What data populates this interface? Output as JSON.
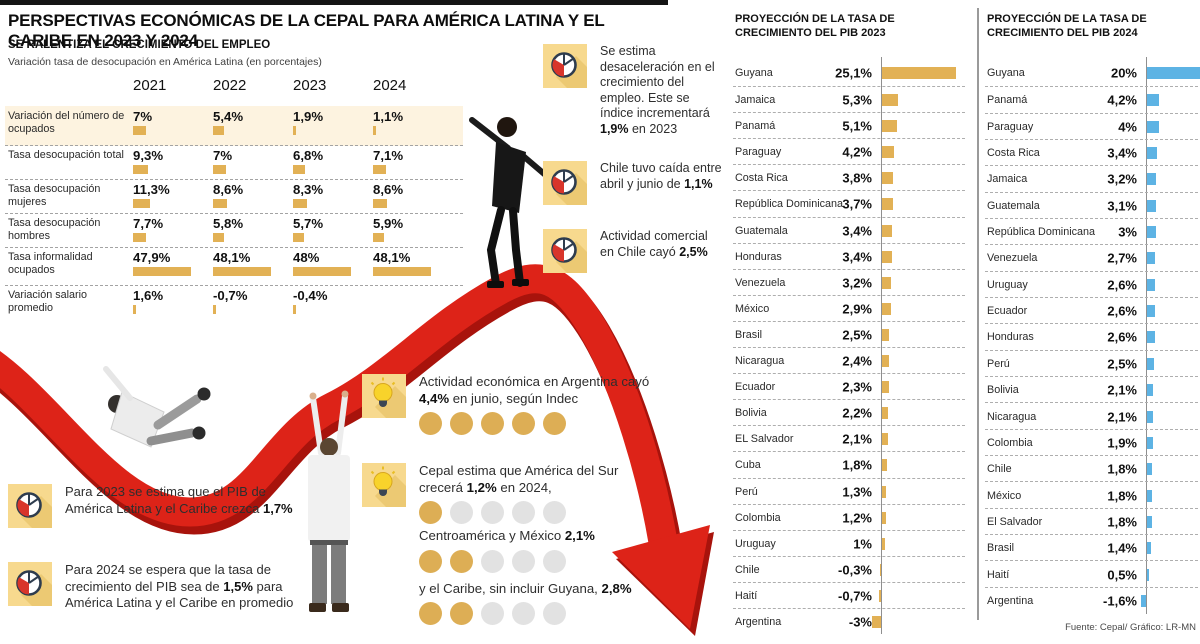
{
  "header": {
    "title": "PERSPECTIVAS ECONÓMICAS DE LA CEPAL PARA AMÉRICA LATINA Y EL CARIBE EN 2023 Y 2024"
  },
  "colors": {
    "gold": "#e2b155",
    "blue": "#5db3e4",
    "red": "#dd2318",
    "red_dark": "#a8130c",
    "icon_bg": "#f7d98e",
    "icon_shadow": "#ecc973",
    "navy": "#2e3c4e",
    "highlight_row": "#fdf3e0",
    "dot_gold": "#ddae55",
    "dot_gray": "#e2e2e2"
  },
  "chart_data": [
    {
      "type": "table",
      "title": "SE RALENTIZA EL CRECIMIENTO DEL EMPLEO",
      "subtitle": "Variación tasa de desocupación en América Latina (en porcentajes)",
      "columns": [
        "2021",
        "2022",
        "2023",
        "2024"
      ],
      "rows": [
        {
          "label": "Variación del número de ocupados",
          "display": [
            "7%",
            "5,4%",
            "1,9%",
            "1,1%"
          ],
          "values": [
            7,
            5.4,
            1.9,
            1.1
          ],
          "highlight": true
        },
        {
          "label": "Tasa desocupación total",
          "display": [
            "9,3%",
            "7%",
            "6,8%",
            "7,1%"
          ],
          "values": [
            9.3,
            7,
            6.8,
            7.1
          ],
          "highlight": false
        },
        {
          "label": "Tasa desocupación mujeres",
          "display": [
            "11,3%",
            "8,6%",
            "8,3%",
            "8,6%"
          ],
          "values": [
            11.3,
            8.6,
            8.3,
            8.6
          ],
          "highlight": false
        },
        {
          "label": "Tasa desocupación hombres",
          "display": [
            "7,7%",
            "5,8%",
            "5,7%",
            "5,9%"
          ],
          "values": [
            7.7,
            5.8,
            5.7,
            5.9
          ],
          "highlight": false
        },
        {
          "label": "Tasa informalidad ocupados",
          "display": [
            "47,9%",
            "48,1%",
            "48%",
            "48,1%"
          ],
          "values": [
            47.9,
            48.1,
            48,
            48.1
          ],
          "highlight": false
        },
        {
          "label": "Variación salario promedio",
          "display": [
            "1,6%",
            "-0,7%",
            "-0,4%",
            ""
          ],
          "values": [
            1.6,
            -0.7,
            -0.4,
            null
          ],
          "highlight": false
        }
      ]
    },
    {
      "type": "bar",
      "orientation": "horizontal",
      "title": "PROYECCIÓN DE LA TASA DE CRECIMIENTO DEL PIB 2023",
      "unit": "%",
      "categories": [
        "Guyana",
        "Jamaica",
        "Panamá",
        "Paraguay",
        "Costa Rica",
        "República Dominicana",
        "Guatemala",
        "Honduras",
        "Venezuela",
        "México",
        "Brasil",
        "Nicaragua",
        "Ecuador",
        "Bolivia",
        "EL Salvador",
        "Cuba",
        "Perú",
        "Colombia",
        "Uruguay",
        "Chile",
        "Haití",
        "Argentina"
      ],
      "values": [
        25.1,
        5.3,
        5.1,
        4.2,
        3.8,
        3.7,
        3.4,
        3.4,
        3.2,
        2.9,
        2.5,
        2.4,
        2.3,
        2.2,
        2.1,
        1.8,
        1.3,
        1.2,
        1,
        -0.3,
        -0.7,
        -3
      ],
      "labels": [
        "25,1%",
        "5,3%",
        "5,1%",
        "4,2%",
        "3,8%",
        "3,7%",
        "3,4%",
        "3,4%",
        "3,2%",
        "2,9%",
        "2,5%",
        "2,4%",
        "2,3%",
        "2,2%",
        "2,1%",
        "1,8%",
        "1,3%",
        "1,2%",
        "1%",
        "-0,3%",
        "-0,7%",
        "-3%"
      ]
    },
    {
      "type": "bar",
      "orientation": "horizontal",
      "title": "PROYECCIÓN DE LA TASA DE CRECIMIENTO DEL PIB 2024",
      "unit": "%",
      "categories": [
        "Guyana",
        "Panamá",
        "Paraguay",
        "Costa Rica",
        "Jamaica",
        "Guatemala",
        "República Dominicana",
        "Venezuela",
        "Uruguay",
        "Ecuador",
        "Honduras",
        "Perú",
        "Bolivia",
        "Nicaragua",
        "Colombia",
        "Chile",
        "México",
        "El Salvador",
        "Brasil",
        "Haití",
        "Argentina"
      ],
      "values": [
        20,
        4.2,
        4,
        3.4,
        3.2,
        3.1,
        3,
        2.7,
        2.6,
        2.6,
        2.6,
        2.5,
        2.1,
        2.1,
        1.9,
        1.8,
        1.8,
        1.8,
        1.4,
        0.5,
        -1.6
      ],
      "labels": [
        "20%",
        "4,2%",
        "4%",
        "3,4%",
        "3,2%",
        "3,1%",
        "3%",
        "2,7%",
        "2,6%",
        "2,6%",
        "2,6%",
        "2,5%",
        "2,1%",
        "2,1%",
        "1,9%",
        "1,8%",
        "1,8%",
        "1,8%",
        "1,4%",
        "0,5%",
        "-1,6%"
      ]
    }
  ],
  "notes_mid": [
    {
      "segments": [
        {
          "t": "Se estima desaceleración en el crecimiento del empleo. Este se índice incrementará "
        },
        {
          "t": "1,9%",
          "b": true
        },
        {
          "t": " en 2023"
        }
      ]
    },
    {
      "segments": [
        {
          "t": "Chile tuvo caída entre abril y junio de "
        },
        {
          "t": "1,1%",
          "b": true
        }
      ]
    },
    {
      "segments": [
        {
          "t": "Actividad comercial en Chile cayó "
        },
        {
          "t": "2,5%",
          "b": true
        }
      ]
    }
  ],
  "notes_bottom_left": [
    {
      "segments": [
        {
          "t": "Para 2023 se estima que el PIB de América Latina y el Caribe crezca "
        },
        {
          "t": "1,7%",
          "b": true
        }
      ]
    },
    {
      "segments": [
        {
          "t": "Para 2024 se espera que la tasa de crecimiento del PIB sea de "
        },
        {
          "t": "1,5%",
          "b": true
        },
        {
          "t": " para América Latina y el Caribe en promedio"
        }
      ]
    }
  ],
  "notes_bulb": [
    {
      "icon": true,
      "segments": [
        {
          "t": "Actividad económica en Argentina cayó "
        },
        {
          "t": "4,4%",
          "b": true
        },
        {
          "t": " en junio, según Indec"
        }
      ],
      "dots": {
        "gold": 5,
        "total": 5
      },
      "gap": 28
    },
    {
      "icon": true,
      "segments": [
        {
          "t": "Cepal estima que América del Sur crecerá "
        },
        {
          "t": "1,2%",
          "b": true
        },
        {
          "t": " en 2024,"
        }
      ],
      "dots": {
        "gold": 1,
        "total": 5
      },
      "gap": 4
    },
    {
      "icon": false,
      "segments": [
        {
          "t": "Centroamérica y México "
        },
        {
          "t": "2,1%",
          "b": true
        }
      ],
      "dots": {
        "gold": 2,
        "total": 5
      },
      "gap": 8
    },
    {
      "icon": false,
      "segments": [
        {
          "t": "y el Caribe, sin incluir Guyana, "
        },
        {
          "t": "2,8%",
          "b": true
        }
      ],
      "dots": {
        "gold": 2,
        "total": 5
      },
      "gap": 0
    }
  ],
  "footer": {
    "source": "Fuente: Cepal/ Gráfico: LR-MN"
  }
}
